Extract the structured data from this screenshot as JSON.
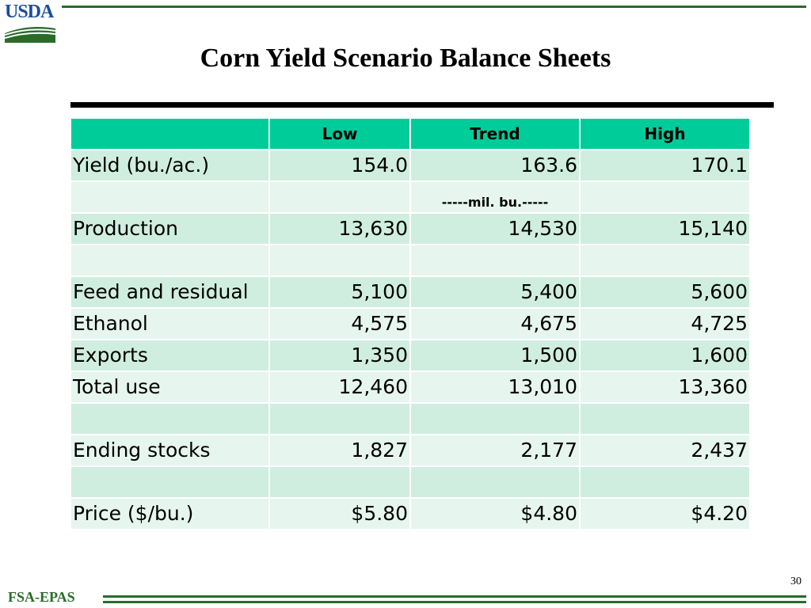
{
  "header": {
    "logo_text": "USDA",
    "title": "Corn Yield Scenario Balance Sheets"
  },
  "table": {
    "columns": [
      "",
      "Low",
      "Trend",
      "High"
    ],
    "rows": [
      {
        "label": "Yield (bu./ac.)",
        "values": [
          "154.0",
          "163.6",
          "170.1"
        ]
      },
      {
        "label": "",
        "unit": "-----mil. bu.-----"
      },
      {
        "label": "Production",
        "values": [
          "13,630",
          "14,530",
          "15,140"
        ]
      },
      {
        "label": "",
        "values": [
          "",
          "",
          ""
        ]
      },
      {
        "label": "Feed and residual",
        "values": [
          "5,100",
          "5,400",
          "5,600"
        ]
      },
      {
        "label": "Ethanol",
        "values": [
          "4,575",
          "4,675",
          "4,725"
        ]
      },
      {
        "label": "Exports",
        "values": [
          "1,350",
          "1,500",
          "1,600"
        ]
      },
      {
        "label": "Total use",
        "values": [
          "12,460",
          "13,010",
          "13,360"
        ]
      },
      {
        "label": "",
        "values": [
          "",
          "",
          ""
        ]
      },
      {
        "label": "Ending stocks",
        "values": [
          "1,827",
          "2,177",
          "2,437"
        ]
      },
      {
        "label": "",
        "values": [
          "",
          "",
          ""
        ]
      },
      {
        "label": "Price ($/bu.)",
        "values": [
          "$5.80",
          "$4.80",
          "$4.20"
        ]
      }
    ]
  },
  "footer": {
    "label": "FSA-EPAS",
    "page_number": "30"
  },
  "colors": {
    "header_row": "#00cc99",
    "row_odd": "#cfeee0",
    "row_even": "#e7f5ef",
    "usda_blue": "#1a4e9a",
    "usda_green": "#2a6b2a"
  }
}
